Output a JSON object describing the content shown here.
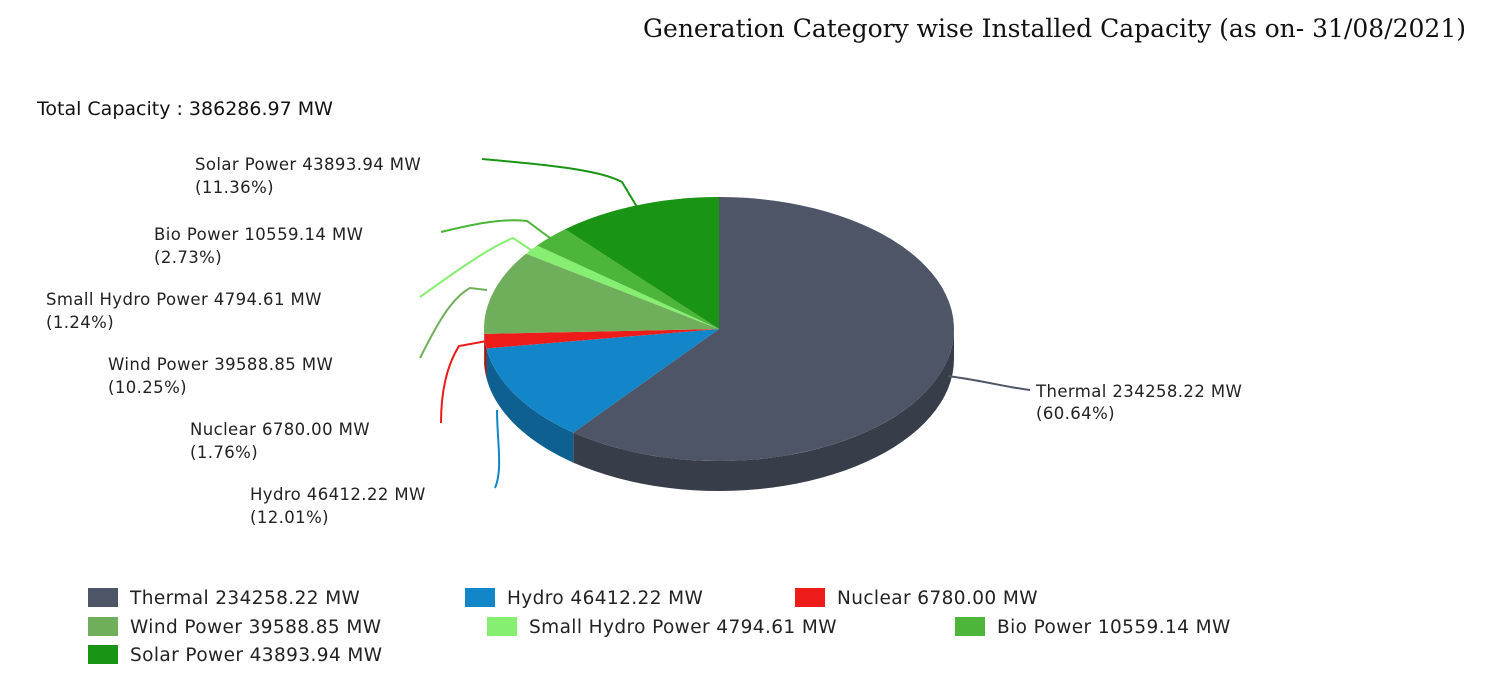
{
  "chart_data": {
    "type": "pie",
    "title": "Generation Category wise Installed Capacity (as on- 31/08/2021)",
    "total_label": "Total Capacity : 386286.97 MW",
    "slices": [
      {
        "name": "Thermal",
        "value": 234258.22,
        "percent": 60.64,
        "color": "#4d5566",
        "label_line1": "Thermal 234258.22 MW",
        "label_line2": "(60.64%)",
        "legend": "Thermal 234258.22 MW"
      },
      {
        "name": "Hydro",
        "value": 46412.22,
        "percent": 12.01,
        "color": "#1386c9",
        "label_line1": "Hydro 46412.22 MW",
        "label_line2": "(12.01%)",
        "legend": "Hydro 46412.22 MW"
      },
      {
        "name": "Nuclear",
        "value": 6780.0,
        "percent": 1.76,
        "color": "#ee1b1b",
        "label_line1": "Nuclear 6780.00 MW",
        "label_line2": "(1.76%)",
        "legend": "Nuclear 6780.00 MW"
      },
      {
        "name": "Wind Power",
        "value": 39588.85,
        "percent": 10.25,
        "color": "#6fae5a",
        "label_line1": "Wind Power 39588.85 MW",
        "label_line2": "(10.25%)",
        "legend": "Wind Power 39588.85 MW"
      },
      {
        "name": "Small Hydro Power",
        "value": 4794.61,
        "percent": 1.24,
        "color": "#86ee70",
        "label_line1": "Small Hydro Power 4794.61 MW",
        "label_line2": "(1.24%)",
        "legend": "Small Hydro Power 4794.61 MW"
      },
      {
        "name": "Bio Power",
        "value": 10559.14,
        "percent": 2.73,
        "color": "#4cb53a",
        "label_line1": "Bio Power 10559.14 MW",
        "label_line2": "(2.73%)",
        "legend": "Bio Power 10559.14 MW"
      },
      {
        "name": "Solar Power",
        "value": 43893.94,
        "percent": 11.36,
        "color": "#1a9414",
        "label_line1": "Solar Power 43893.94 MW",
        "label_line2": "(11.36%)",
        "legend": "Solar Power 43893.94 MW"
      }
    ],
    "three_d": true,
    "start_angle": "12 o'clock",
    "direction": "clockwise",
    "legend_position": "bottom"
  }
}
